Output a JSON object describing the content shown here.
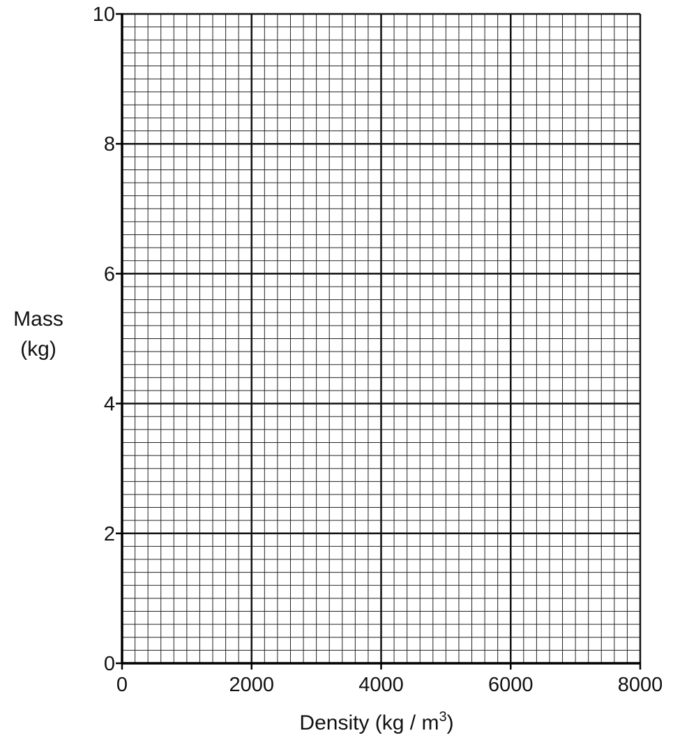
{
  "chart_data": {
    "type": "scatter",
    "title": "",
    "xlabel": "Density (kg / m",
    "xlabel_superscript": "3",
    "xlabel_close": ")",
    "ylabel_lines": [
      "Mass",
      "(kg)"
    ],
    "xlim": [
      0,
      8000
    ],
    "ylim": [
      0,
      10
    ],
    "x_ticks": [
      0,
      2000,
      4000,
      6000,
      8000
    ],
    "x_tick_labels": [
      "0",
      "2000",
      "4000",
      "6000",
      "8000"
    ],
    "y_ticks": [
      0,
      2,
      4,
      6,
      8,
      10
    ],
    "y_tick_labels": [
      "0",
      "2",
      "4",
      "6",
      "8",
      "10"
    ],
    "x_minor_step": 200,
    "y_minor_step": 0.2,
    "grid": true,
    "series": [],
    "colors": {
      "grid_minor": "#222222",
      "grid_major": "#111111",
      "axis": "#000000"
    }
  }
}
